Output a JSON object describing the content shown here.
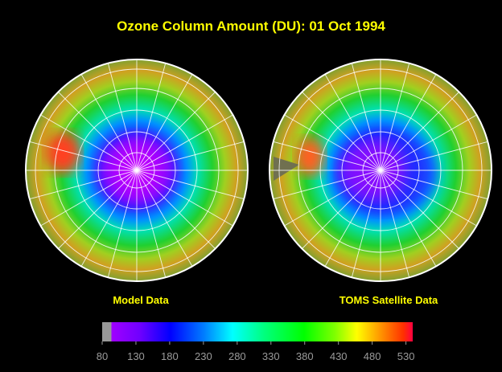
{
  "title": "Ozone Column Amount (DU): 01 Oct 1994",
  "panels": [
    {
      "label": "Model Data"
    },
    {
      "label": "TOMS Satellite Data"
    }
  ],
  "colorbar": {
    "lim": [
      80,
      540
    ],
    "ticks": [
      80,
      130,
      180,
      230,
      280,
      330,
      380,
      430,
      480,
      530
    ]
  }
}
